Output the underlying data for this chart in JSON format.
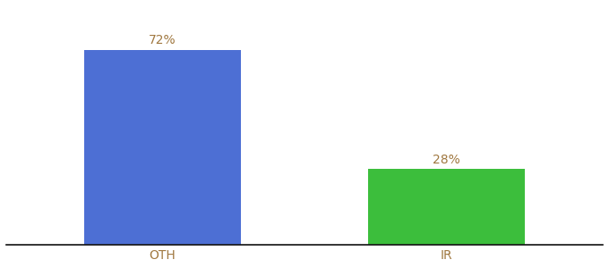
{
  "categories": [
    "OTH",
    "IR"
  ],
  "values": [
    72,
    28
  ],
  "bar_colors": [
    "#4d6fd4",
    "#3cbe3c"
  ],
  "labels": [
    "72%",
    "28%"
  ],
  "ylim": [
    0,
    88
  ],
  "background_color": "#ffffff",
  "label_color": "#a07840",
  "tick_color": "#a07840",
  "bar_width": 0.55,
  "label_fontsize": 10,
  "tick_fontsize": 10,
  "xlim": [
    -0.55,
    1.55
  ]
}
